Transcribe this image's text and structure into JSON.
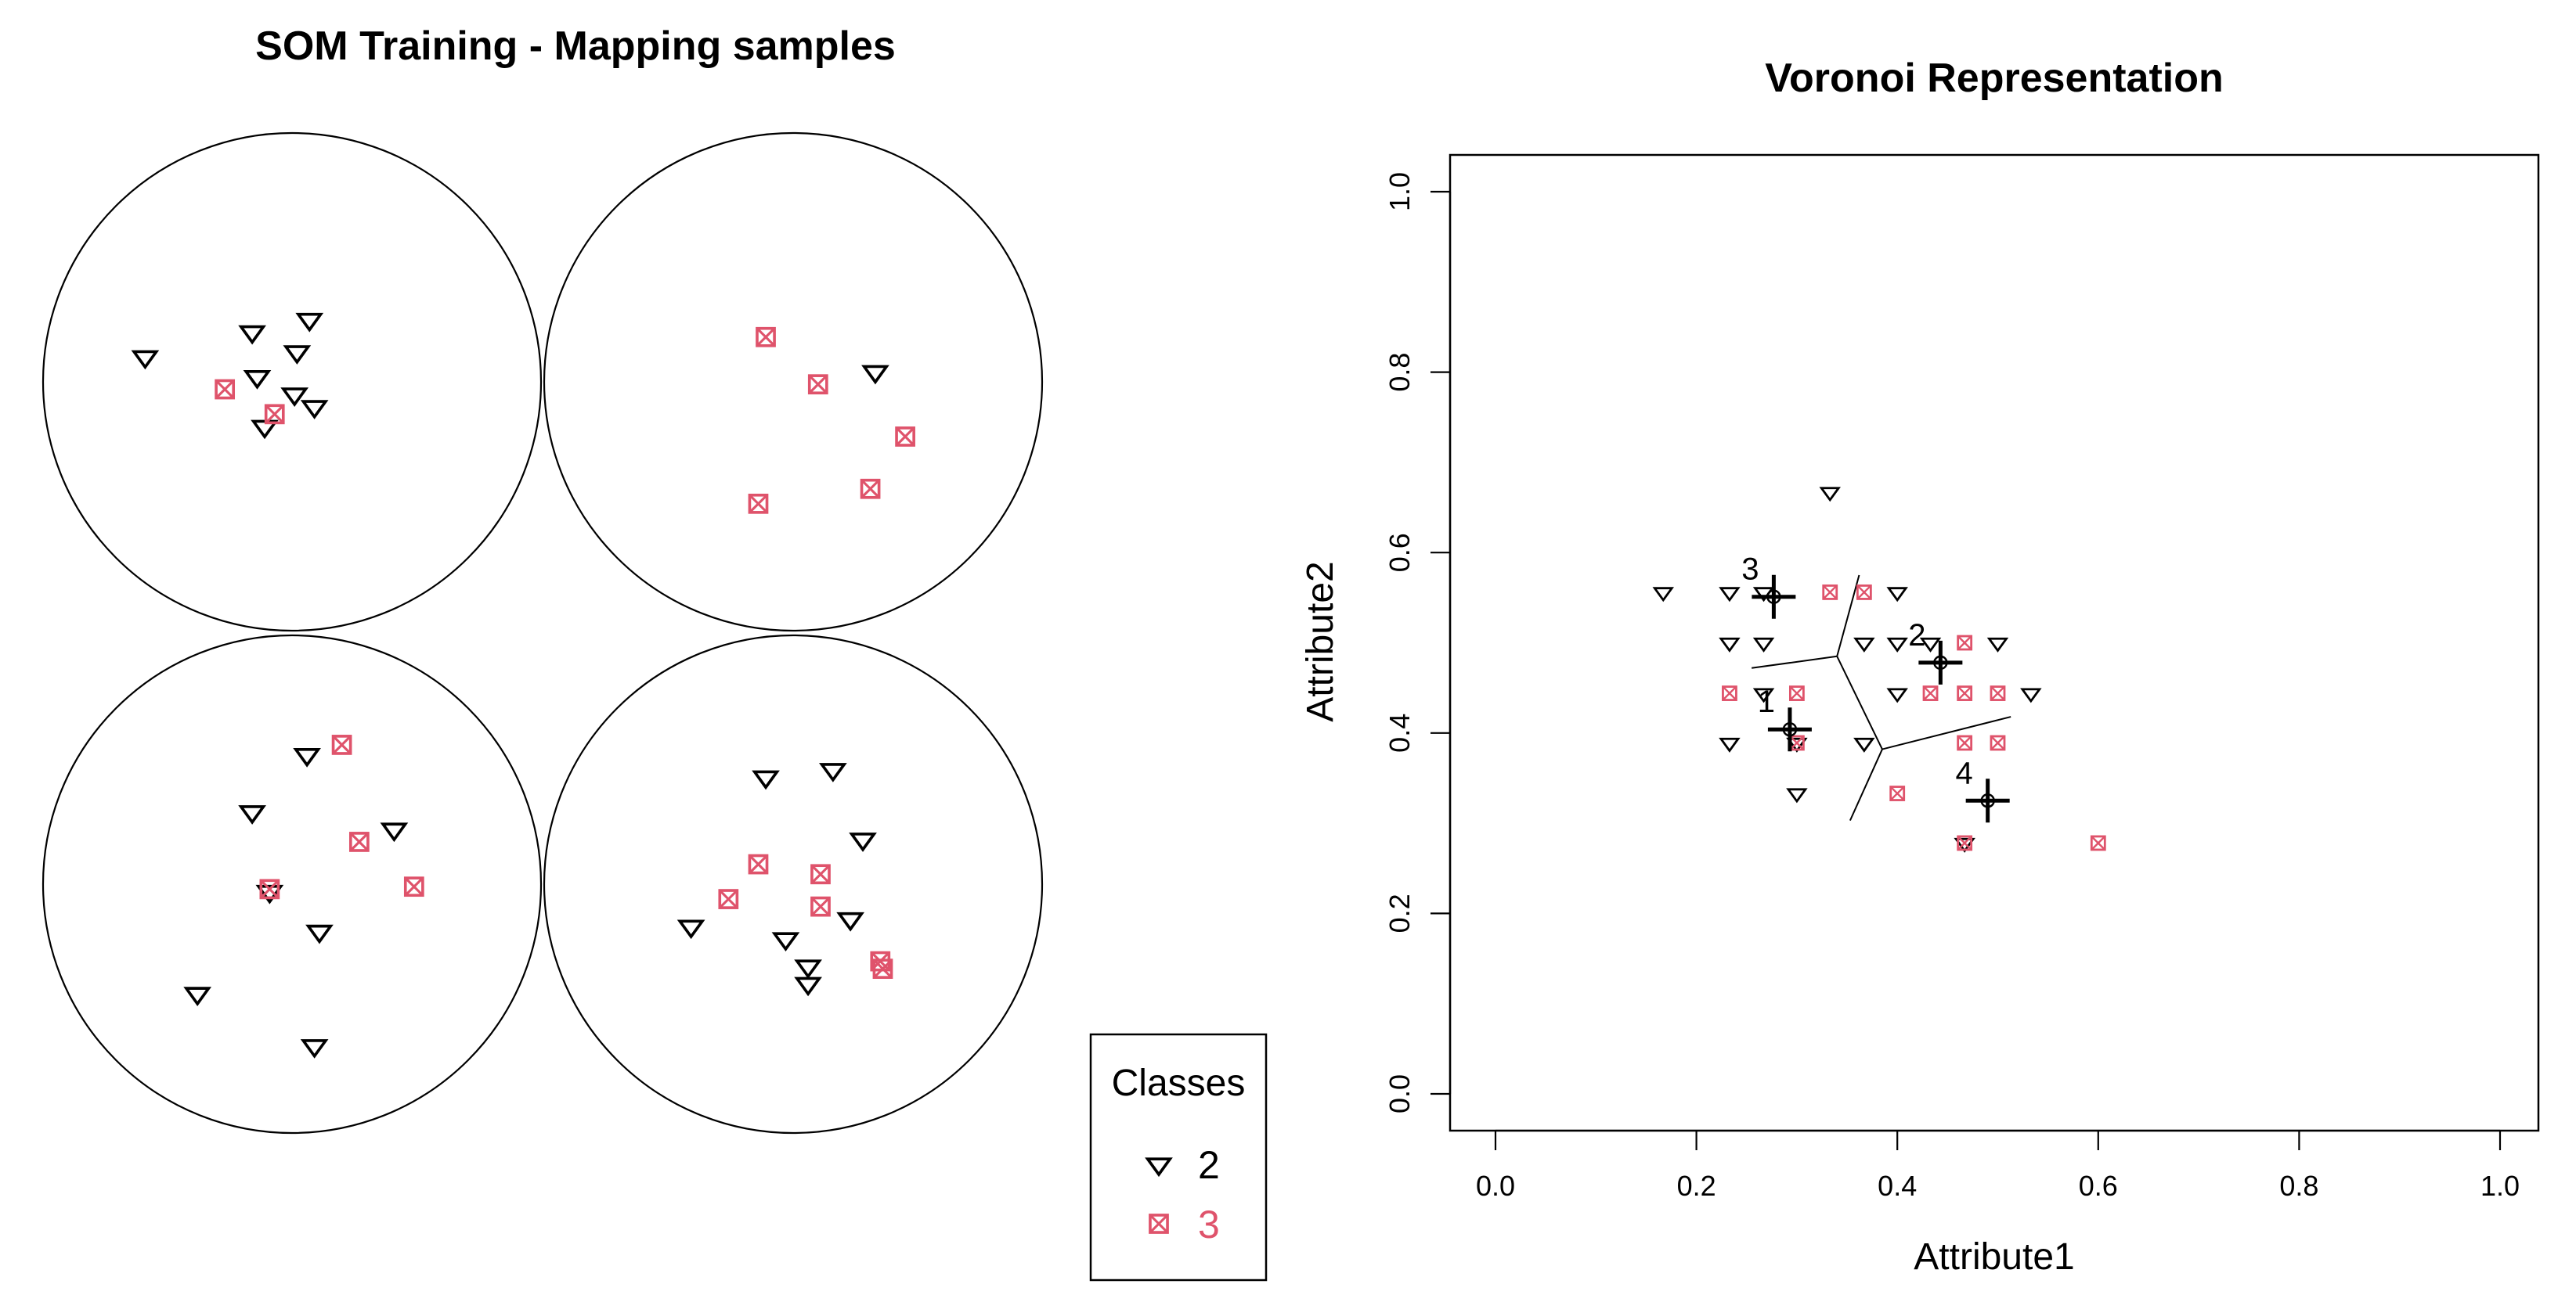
{
  "colors": {
    "class_2": "#000000",
    "class_3": "#DF536B",
    "frame": "#000000",
    "background": "#ffffff"
  },
  "chart_data": [
    {
      "type": "scatter",
      "title": "SOM Training - Mapping samples",
      "grid": "2x2 neuron circles",
      "legend": {
        "title": "Classes",
        "placement": "bottom-right",
        "entries": [
          {
            "label": "2",
            "marker": "triangle-down",
            "color": "#000000"
          },
          {
            "label": "3",
            "marker": "boxed-x",
            "color": "#DF536B"
          }
        ]
      },
      "neurons": [
        {
          "index": 1,
          "points": [
            {
              "x": -0.59,
              "y": 0.1,
              "class": "2"
            },
            {
              "x": -0.16,
              "y": 0.2,
              "class": "2"
            },
            {
              "x": 0.07,
              "y": 0.25,
              "class": "2"
            },
            {
              "x": -0.14,
              "y": 0.02,
              "class": "2"
            },
            {
              "x": 0.01,
              "y": -0.05,
              "class": "2"
            },
            {
              "x": 0.02,
              "y": 0.12,
              "class": "2"
            },
            {
              "x": 0.09,
              "y": -0.1,
              "class": "2"
            },
            {
              "x": -0.11,
              "y": -0.18,
              "class": "2"
            },
            {
              "x": -0.27,
              "y": -0.03,
              "class": "3"
            },
            {
              "x": -0.07,
              "y": -0.13,
              "class": "3"
            }
          ]
        },
        {
          "index": 2,
          "points": [
            {
              "x": 0.33,
              "y": 0.04,
              "class": "2"
            },
            {
              "x": -0.11,
              "y": 0.18,
              "class": "3"
            },
            {
              "x": 0.1,
              "y": -0.01,
              "class": "3"
            },
            {
              "x": 0.45,
              "y": -0.22,
              "class": "3"
            },
            {
              "x": 0.31,
              "y": -0.43,
              "class": "3"
            },
            {
              "x": -0.14,
              "y": -0.49,
              "class": "3"
            }
          ]
        },
        {
          "index": 3,
          "points": [
            {
              "x": 0.06,
              "y": 0.52,
              "class": "2"
            },
            {
              "x": -0.16,
              "y": 0.29,
              "class": "2"
            },
            {
              "x": 0.41,
              "y": 0.22,
              "class": "2"
            },
            {
              "x": -0.09,
              "y": -0.03,
              "class": "2"
            },
            {
              "x": 0.11,
              "y": -0.19,
              "class": "2"
            },
            {
              "x": -0.38,
              "y": -0.44,
              "class": "2"
            },
            {
              "x": 0.09,
              "y": -0.65,
              "class": "2"
            },
            {
              "x": 0.2,
              "y": 0.56,
              "class": "3"
            },
            {
              "x": 0.27,
              "y": 0.17,
              "class": "3"
            },
            {
              "x": 0.49,
              "y": -0.01,
              "class": "3"
            },
            {
              "x": -0.09,
              "y": -0.02,
              "class": "3"
            }
          ]
        },
        {
          "index": 4,
          "points": [
            {
              "x": -0.11,
              "y": 0.43,
              "class": "2"
            },
            {
              "x": 0.16,
              "y": 0.46,
              "class": "2"
            },
            {
              "x": 0.28,
              "y": 0.18,
              "class": "2"
            },
            {
              "x": -0.41,
              "y": -0.17,
              "class": "2"
            },
            {
              "x": -0.03,
              "y": -0.22,
              "class": "2"
            },
            {
              "x": 0.23,
              "y": -0.14,
              "class": "2"
            },
            {
              "x": 0.06,
              "y": -0.33,
              "class": "2"
            },
            {
              "x": 0.06,
              "y": -0.4,
              "class": "2"
            },
            {
              "x": -0.14,
              "y": 0.08,
              "class": "3"
            },
            {
              "x": 0.11,
              "y": 0.04,
              "class": "3"
            },
            {
              "x": -0.26,
              "y": -0.06,
              "class": "3"
            },
            {
              "x": 0.11,
              "y": -0.09,
              "class": "3"
            },
            {
              "x": 0.35,
              "y": -0.31,
              "class": "3"
            },
            {
              "x": 0.36,
              "y": -0.34,
              "class": "3"
            }
          ]
        }
      ]
    },
    {
      "type": "scatter",
      "title": "Voronoi Representation",
      "xlabel": "Attribute1",
      "ylabel": "Attribute2",
      "xlim": [
        0,
        1
      ],
      "ylim": [
        0,
        1
      ],
      "xticks": [
        "0.0",
        "0.2",
        "0.4",
        "0.6",
        "0.8",
        "1.0"
      ],
      "yticks": [
        "0.0",
        "0.2",
        "0.4",
        "0.6",
        "0.8",
        "1.0"
      ],
      "grid": false,
      "points": [
        {
          "x": 0.167,
          "y": 0.556,
          "class": "2"
        },
        {
          "x": 0.233,
          "y": 0.556,
          "class": "2"
        },
        {
          "x": 0.267,
          "y": 0.556,
          "class": "2"
        },
        {
          "x": 0.333,
          "y": 0.667,
          "class": "2"
        },
        {
          "x": 0.4,
          "y": 0.556,
          "class": "2"
        },
        {
          "x": 0.233,
          "y": 0.5,
          "class": "2"
        },
        {
          "x": 0.267,
          "y": 0.5,
          "class": "2"
        },
        {
          "x": 0.367,
          "y": 0.5,
          "class": "2"
        },
        {
          "x": 0.4,
          "y": 0.5,
          "class": "2"
        },
        {
          "x": 0.433,
          "y": 0.5,
          "class": "2"
        },
        {
          "x": 0.5,
          "y": 0.5,
          "class": "2"
        },
        {
          "x": 0.267,
          "y": 0.444,
          "class": "2"
        },
        {
          "x": 0.4,
          "y": 0.444,
          "class": "2"
        },
        {
          "x": 0.533,
          "y": 0.444,
          "class": "2"
        },
        {
          "x": 0.233,
          "y": 0.389,
          "class": "2"
        },
        {
          "x": 0.3,
          "y": 0.389,
          "class": "2"
        },
        {
          "x": 0.367,
          "y": 0.389,
          "class": "2"
        },
        {
          "x": 0.3,
          "y": 0.333,
          "class": "2"
        },
        {
          "x": 0.467,
          "y": 0.278,
          "class": "2"
        },
        {
          "x": 0.333,
          "y": 0.556,
          "class": "3"
        },
        {
          "x": 0.367,
          "y": 0.556,
          "class": "3"
        },
        {
          "x": 0.467,
          "y": 0.5,
          "class": "3"
        },
        {
          "x": 0.233,
          "y": 0.444,
          "class": "3"
        },
        {
          "x": 0.3,
          "y": 0.444,
          "class": "3"
        },
        {
          "x": 0.433,
          "y": 0.444,
          "class": "3"
        },
        {
          "x": 0.467,
          "y": 0.444,
          "class": "3"
        },
        {
          "x": 0.5,
          "y": 0.444,
          "class": "3"
        },
        {
          "x": 0.3,
          "y": 0.389,
          "class": "3"
        },
        {
          "x": 0.467,
          "y": 0.389,
          "class": "3"
        },
        {
          "x": 0.5,
          "y": 0.389,
          "class": "3"
        },
        {
          "x": 0.4,
          "y": 0.333,
          "class": "3"
        },
        {
          "x": 0.467,
          "y": 0.278,
          "class": "3"
        },
        {
          "x": 0.6,
          "y": 0.278,
          "class": "3"
        }
      ],
      "prototypes": [
        {
          "label": "1",
          "x": 0.293,
          "y": 0.404
        },
        {
          "label": "2",
          "x": 0.443,
          "y": 0.478
        },
        {
          "label": "3",
          "x": 0.277,
          "y": 0.551
        },
        {
          "label": "4",
          "x": 0.49,
          "y": 0.325
        }
      ],
      "voronoi_edges": [
        {
          "x1": 0.385,
          "y1": 0.382,
          "x2": 0.34,
          "y2": 0.485
        },
        {
          "x1": 0.34,
          "y1": 0.485,
          "x2": 0.255,
          "y2": 0.472
        },
        {
          "x1": 0.34,
          "y1": 0.485,
          "x2": 0.362,
          "y2": 0.575
        },
        {
          "x1": 0.385,
          "y1": 0.382,
          "x2": 0.513,
          "y2": 0.418
        },
        {
          "x1": 0.385,
          "y1": 0.382,
          "x2": 0.353,
          "y2": 0.303
        }
      ]
    }
  ]
}
